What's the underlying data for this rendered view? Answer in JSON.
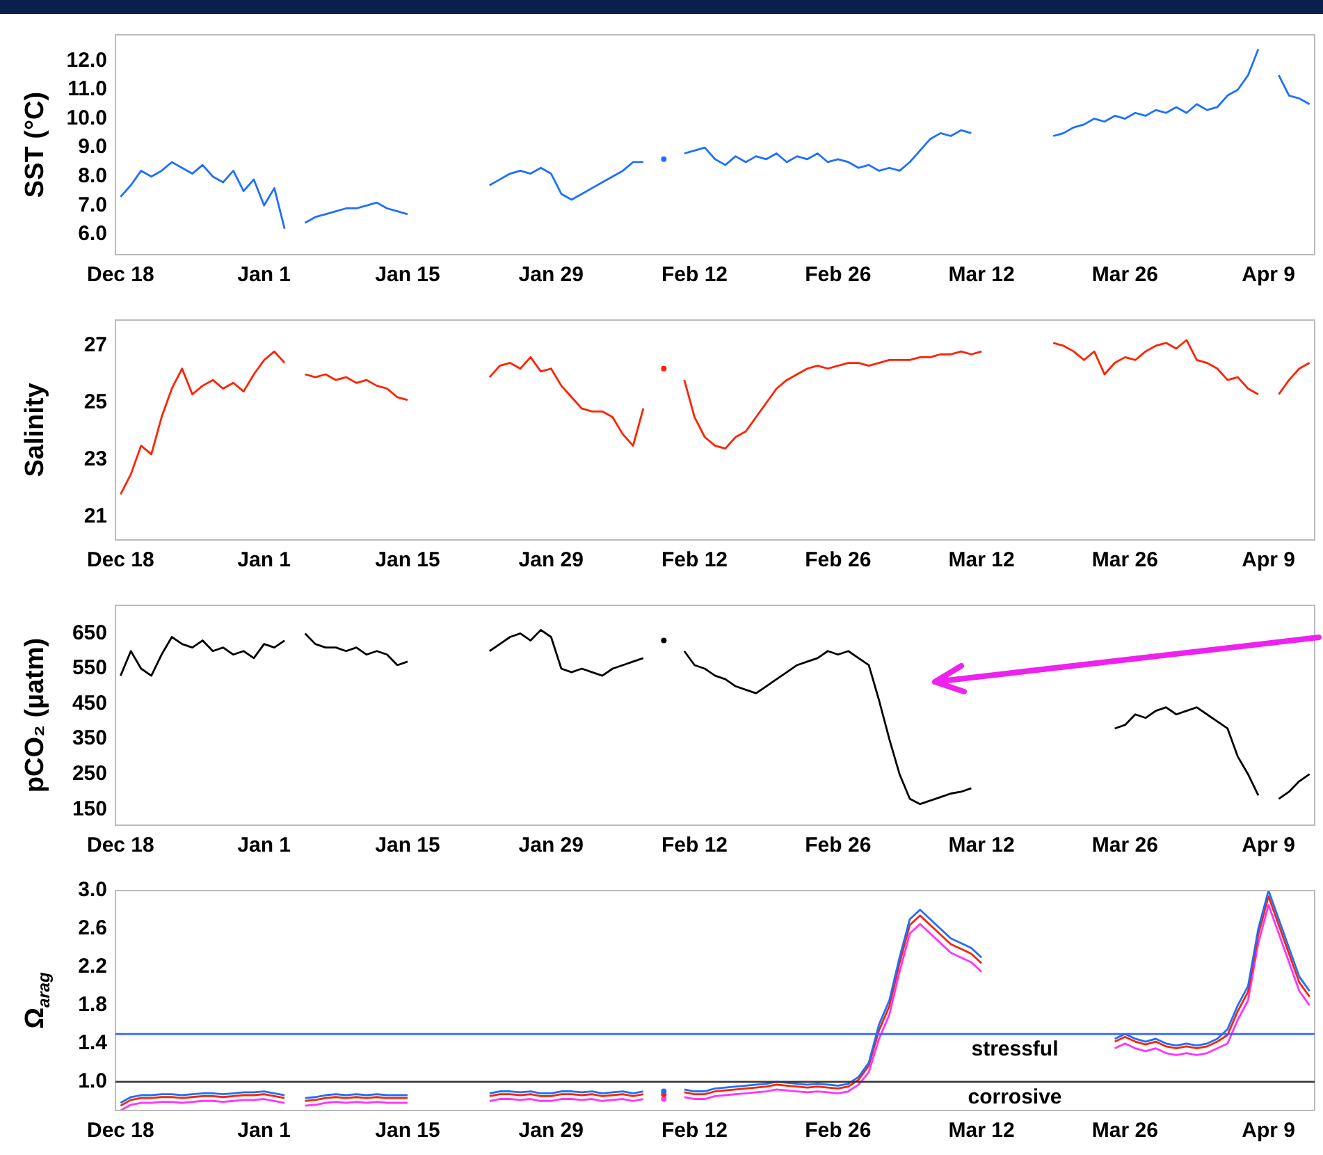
{
  "chart_data": [
    {
      "type": "line",
      "ylabel": "SST (°C)",
      "marker": "none",
      "ylim": [
        5.3,
        12.9
      ],
      "yticks": [
        {
          "value": 6,
          "label": "6.0"
        },
        {
          "value": 7,
          "label": "7.0"
        },
        {
          "value": 8,
          "label": "8.0"
        },
        {
          "value": 9,
          "label": "9.0"
        },
        {
          "value": 10,
          "label": "10.0"
        },
        {
          "value": 11,
          "label": "11.0"
        },
        {
          "value": 12,
          "label": "12.0"
        }
      ],
      "categories": [
        "Dec 18",
        null,
        null,
        null,
        null,
        null,
        null,
        null,
        null,
        null,
        null,
        null,
        null,
        null,
        "Jan 1",
        null,
        null,
        null,
        null,
        null,
        null,
        null,
        null,
        null,
        null,
        null,
        null,
        null,
        "Jan 15",
        null,
        null,
        null,
        null,
        null,
        null,
        null,
        null,
        null,
        null,
        null,
        null,
        null,
        "Jan 29",
        null,
        null,
        null,
        null,
        null,
        null,
        null,
        null,
        null,
        null,
        null,
        null,
        null,
        "Feb 12",
        null,
        null,
        null,
        null,
        null,
        null,
        null,
        null,
        null,
        null,
        null,
        null,
        null,
        "Feb 26",
        null,
        null,
        null,
        null,
        null,
        null,
        null,
        null,
        null,
        null,
        null,
        null,
        null,
        "Mar 12",
        null,
        null,
        null,
        null,
        null,
        null,
        null,
        null,
        null,
        null,
        null,
        null,
        null,
        "Mar 26",
        null,
        null,
        null,
        null,
        null,
        null,
        null,
        null,
        null,
        null,
        null,
        null,
        null,
        "Apr 9",
        null,
        null,
        null,
        null
      ],
      "series": [
        {
          "color": "#1f6fff",
          "values": [
            7.3,
            7.7,
            8.2,
            8.0,
            8.2,
            8.5,
            8.3,
            8.1,
            8.4,
            8.0,
            7.8,
            8.2,
            7.5,
            7.9,
            7.0,
            7.6,
            6.2,
            null,
            6.4,
            6.6,
            6.7,
            6.8,
            6.9,
            6.9,
            7.0,
            7.1,
            6.9,
            6.8,
            6.7,
            null,
            null,
            null,
            null,
            null,
            null,
            null,
            7.7,
            7.9,
            8.1,
            8.2,
            8.1,
            8.3,
            8.1,
            7.4,
            7.2,
            7.4,
            7.6,
            7.8,
            8.0,
            8.2,
            8.5,
            8.5,
            null,
            8.6,
            null,
            8.8,
            8.9,
            9.0,
            8.6,
            8.4,
            8.7,
            8.5,
            8.7,
            8.6,
            8.8,
            8.5,
            8.7,
            8.6,
            8.8,
            8.5,
            8.6,
            8.5,
            8.3,
            8.4,
            8.2,
            8.3,
            8.2,
            8.5,
            8.9,
            9.3,
            9.5,
            9.4,
            9.6,
            9.5,
            null,
            null,
            null,
            null,
            null,
            null,
            null,
            9.4,
            9.5,
            9.7,
            9.8,
            10.0,
            9.9,
            10.1,
            10.0,
            10.2,
            10.1,
            10.3,
            10.2,
            10.4,
            10.2,
            10.5,
            10.3,
            10.4,
            10.8,
            11.0,
            11.5,
            12.4,
            null,
            11.5,
            10.8,
            10.7,
            10.5
          ]
        }
      ]
    },
    {
      "type": "line",
      "ylabel": "Salinity",
      "marker": "none",
      "ylim": [
        20.2,
        27.9
      ],
      "yticks": [
        21,
        23,
        25,
        27
      ],
      "categories": [
        "Dec 18",
        null,
        null,
        null,
        null,
        null,
        null,
        null,
        null,
        null,
        null,
        null,
        null,
        null,
        "Jan 1",
        null,
        null,
        null,
        null,
        null,
        null,
        null,
        null,
        null,
        null,
        null,
        null,
        null,
        "Jan 15",
        null,
        null,
        null,
        null,
        null,
        null,
        null,
        null,
        null,
        null,
        null,
        null,
        null,
        "Jan 29",
        null,
        null,
        null,
        null,
        null,
        null,
        null,
        null,
        null,
        null,
        null,
        null,
        null,
        "Feb 12",
        null,
        null,
        null,
        null,
        null,
        null,
        null,
        null,
        null,
        null,
        null,
        null,
        null,
        "Feb 26",
        null,
        null,
        null,
        null,
        null,
        null,
        null,
        null,
        null,
        null,
        null,
        null,
        null,
        "Mar 12",
        null,
        null,
        null,
        null,
        null,
        null,
        null,
        null,
        null,
        null,
        null,
        null,
        null,
        "Mar 26",
        null,
        null,
        null,
        null,
        null,
        null,
        null,
        null,
        null,
        null,
        null,
        null,
        null,
        "Apr 9",
        null,
        null,
        null,
        null
      ],
      "series": [
        {
          "color": "#ff2200",
          "values": [
            21.8,
            22.5,
            23.5,
            23.2,
            24.5,
            25.5,
            26.2,
            25.3,
            25.6,
            25.8,
            25.5,
            25.7,
            25.4,
            26.0,
            26.5,
            26.8,
            26.4,
            null,
            26.0,
            25.9,
            26.0,
            25.8,
            25.9,
            25.7,
            25.8,
            25.6,
            25.5,
            25.2,
            25.1,
            null,
            null,
            null,
            null,
            null,
            null,
            null,
            25.9,
            26.3,
            26.4,
            26.2,
            26.6,
            26.1,
            26.2,
            25.6,
            25.2,
            24.8,
            24.7,
            24.7,
            24.5,
            23.9,
            23.5,
            24.8,
            null,
            26.2,
            null,
            25.8,
            24.5,
            23.8,
            23.5,
            23.4,
            23.8,
            24.0,
            24.5,
            25.0,
            25.5,
            25.8,
            26.0,
            26.2,
            26.3,
            26.2,
            26.3,
            26.4,
            26.4,
            26.3,
            26.4,
            26.5,
            26.5,
            26.5,
            26.6,
            26.6,
            26.7,
            26.7,
            26.8,
            26.7,
            26.8,
            null,
            null,
            null,
            null,
            null,
            null,
            27.1,
            27.0,
            26.8,
            26.5,
            26.8,
            26.0,
            26.4,
            26.6,
            26.5,
            26.8,
            27.0,
            27.1,
            26.9,
            27.2,
            26.5,
            26.4,
            26.2,
            25.8,
            25.9,
            25.5,
            25.3,
            null,
            25.3,
            25.8,
            26.2,
            26.4
          ]
        }
      ]
    },
    {
      "type": "line",
      "ylabel": "pCO₂ (µatm)",
      "marker": "none",
      "ylim": [
        105,
        730
      ],
      "yticks": [
        150,
        250,
        350,
        450,
        550,
        650
      ],
      "categories": [
        "Dec 18",
        null,
        null,
        null,
        null,
        null,
        null,
        null,
        null,
        null,
        null,
        null,
        null,
        null,
        "Jan 1",
        null,
        null,
        null,
        null,
        null,
        null,
        null,
        null,
        null,
        null,
        null,
        null,
        null,
        "Jan 15",
        null,
        null,
        null,
        null,
        null,
        null,
        null,
        null,
        null,
        null,
        null,
        null,
        null,
        "Jan 29",
        null,
        null,
        null,
        null,
        null,
        null,
        null,
        null,
        null,
        null,
        null,
        null,
        null,
        "Feb 12",
        null,
        null,
        null,
        null,
        null,
        null,
        null,
        null,
        null,
        null,
        null,
        null,
        null,
        "Feb 26",
        null,
        null,
        null,
        null,
        null,
        null,
        null,
        null,
        null,
        null,
        null,
        null,
        null,
        "Mar 12",
        null,
        null,
        null,
        null,
        null,
        null,
        null,
        null,
        null,
        null,
        null,
        null,
        null,
        "Mar 26",
        null,
        null,
        null,
        null,
        null,
        null,
        null,
        null,
        null,
        null,
        null,
        null,
        null,
        "Apr 9",
        null,
        null,
        null,
        null
      ],
      "series": [
        {
          "color": "#000000",
          "values": [
            530,
            600,
            550,
            530,
            590,
            640,
            620,
            610,
            630,
            600,
            610,
            590,
            600,
            580,
            620,
            610,
            630,
            null,
            650,
            620,
            610,
            610,
            600,
            610,
            590,
            600,
            590,
            560,
            570,
            null,
            null,
            null,
            null,
            null,
            null,
            null,
            600,
            620,
            640,
            650,
            630,
            660,
            640,
            550,
            540,
            550,
            540,
            530,
            550,
            560,
            570,
            580,
            null,
            630,
            null,
            600,
            560,
            550,
            530,
            520,
            500,
            490,
            480,
            500,
            520,
            540,
            560,
            570,
            580,
            600,
            590,
            600,
            580,
            560,
            460,
            350,
            250,
            180,
            165,
            175,
            185,
            195,
            200,
            210,
            null,
            null,
            null,
            null,
            null,
            null,
            null,
            null,
            null,
            null,
            null,
            null,
            null,
            380,
            390,
            420,
            410,
            430,
            440,
            420,
            430,
            440,
            420,
            400,
            380,
            300,
            250,
            190,
            null,
            180,
            200,
            230,
            250
          ]
        }
      ]
    },
    {
      "type": "line",
      "ylabel": "Ω$_{arag}$",
      "marker": "none",
      "ylim": [
        0.7,
        3.0
      ],
      "yticks": [
        {
          "value": 1,
          "label": "1.0"
        },
        1.4,
        1.8,
        2.2,
        2.6,
        {
          "value": 3,
          "label": "3.0"
        }
      ],
      "ref_lines": [
        {
          "axis": "y",
          "value": 1.5,
          "label": "stressful",
          "color": "#3366ff"
        },
        {
          "axis": "y",
          "value": 1.0,
          "label": "corrosive",
          "color": "#333333"
        }
      ],
      "categories": [
        "Dec 18",
        null,
        null,
        null,
        null,
        null,
        null,
        null,
        null,
        null,
        null,
        null,
        null,
        null,
        "Jan 1",
        null,
        null,
        null,
        null,
        null,
        null,
        null,
        null,
        null,
        null,
        null,
        null,
        null,
        "Jan 15",
        null,
        null,
        null,
        null,
        null,
        null,
        null,
        null,
        null,
        null,
        null,
        null,
        null,
        "Jan 29",
        null,
        null,
        null,
        null,
        null,
        null,
        null,
        null,
        null,
        null,
        null,
        null,
        null,
        "Feb 12",
        null,
        null,
        null,
        null,
        null,
        null,
        null,
        null,
        null,
        null,
        null,
        null,
        null,
        "Feb 26",
        null,
        null,
        null,
        null,
        null,
        null,
        null,
        null,
        null,
        null,
        null,
        null,
        null,
        "Mar 12",
        null,
        null,
        null,
        null,
        null,
        null,
        null,
        null,
        null,
        null,
        null,
        null,
        null,
        "Mar 26",
        null,
        null,
        null,
        null,
        null,
        null,
        null,
        null,
        null,
        null,
        null,
        null,
        null,
        "Apr 9",
        null,
        null,
        null,
        null
      ],
      "series": [
        {
          "color": "#1f6fff",
          "values": [
            0.78,
            0.84,
            0.86,
            0.86,
            0.87,
            0.87,
            0.86,
            0.87,
            0.88,
            0.88,
            0.87,
            0.88,
            0.89,
            0.89,
            0.9,
            0.88,
            0.86,
            null,
            0.83,
            0.84,
            0.86,
            0.87,
            0.86,
            0.87,
            0.86,
            0.87,
            0.86,
            0.86,
            0.86,
            null,
            null,
            null,
            null,
            null,
            null,
            null,
            0.88,
            0.9,
            0.9,
            0.89,
            0.9,
            0.88,
            0.88,
            0.9,
            0.9,
            0.89,
            0.9,
            0.88,
            0.89,
            0.9,
            0.88,
            0.9,
            null,
            0.9,
            null,
            0.92,
            0.9,
            0.9,
            0.93,
            0.94,
            0.95,
            0.96,
            0.97,
            0.98,
            1.0,
            0.99,
            0.98,
            0.97,
            0.98,
            0.97,
            0.96,
            0.98,
            1.05,
            1.2,
            1.6,
            1.85,
            2.3,
            2.7,
            2.8,
            2.7,
            2.6,
            2.5,
            2.45,
            2.4,
            2.3,
            null,
            null,
            null,
            null,
            null,
            null,
            null,
            null,
            null,
            null,
            null,
            null,
            1.45,
            1.5,
            1.45,
            1.42,
            1.45,
            1.4,
            1.38,
            1.4,
            1.38,
            1.4,
            1.45,
            1.55,
            1.8,
            2.0,
            2.6,
            3.0,
            2.7,
            2.4,
            2.1,
            1.95
          ]
        },
        {
          "color": "#ff2200",
          "values": [
            0.75,
            0.81,
            0.83,
            0.83,
            0.84,
            0.84,
            0.83,
            0.84,
            0.85,
            0.85,
            0.84,
            0.85,
            0.86,
            0.86,
            0.87,
            0.85,
            0.83,
            null,
            0.8,
            0.81,
            0.83,
            0.84,
            0.83,
            0.84,
            0.83,
            0.84,
            0.83,
            0.83,
            0.83,
            null,
            null,
            null,
            null,
            null,
            null,
            null,
            0.85,
            0.87,
            0.87,
            0.86,
            0.87,
            0.85,
            0.85,
            0.87,
            0.87,
            0.86,
            0.87,
            0.85,
            0.86,
            0.87,
            0.85,
            0.87,
            null,
            0.87,
            null,
            0.89,
            0.87,
            0.87,
            0.9,
            0.91,
            0.92,
            0.93,
            0.94,
            0.95,
            0.97,
            0.96,
            0.95,
            0.94,
            0.95,
            0.94,
            0.93,
            0.95,
            1.02,
            1.17,
            1.54,
            1.79,
            2.24,
            2.64,
            2.74,
            2.64,
            2.54,
            2.44,
            2.39,
            2.34,
            2.24,
            null,
            null,
            null,
            null,
            null,
            null,
            null,
            null,
            null,
            null,
            null,
            null,
            1.42,
            1.47,
            1.42,
            1.39,
            1.42,
            1.37,
            1.35,
            1.37,
            1.35,
            1.37,
            1.42,
            1.49,
            1.74,
            1.94,
            2.54,
            2.94,
            2.64,
            2.34,
            2.04,
            1.89
          ]
        },
        {
          "color": "#ff33ff",
          "values": [
            0.7,
            0.76,
            0.78,
            0.78,
            0.79,
            0.79,
            0.78,
            0.79,
            0.8,
            0.8,
            0.79,
            0.8,
            0.81,
            0.81,
            0.82,
            0.8,
            0.78,
            null,
            0.75,
            0.76,
            0.78,
            0.79,
            0.78,
            0.79,
            0.78,
            0.79,
            0.78,
            0.78,
            0.78,
            null,
            null,
            null,
            null,
            null,
            null,
            null,
            0.8,
            0.82,
            0.82,
            0.81,
            0.82,
            0.8,
            0.8,
            0.82,
            0.82,
            0.81,
            0.82,
            0.8,
            0.81,
            0.82,
            0.8,
            0.82,
            null,
            0.82,
            null,
            0.84,
            0.82,
            0.82,
            0.85,
            0.86,
            0.87,
            0.88,
            0.89,
            0.9,
            0.92,
            0.91,
            0.9,
            0.89,
            0.9,
            0.89,
            0.88,
            0.9,
            0.97,
            1.1,
            1.45,
            1.7,
            2.15,
            2.55,
            2.65,
            2.55,
            2.45,
            2.35,
            2.3,
            2.25,
            2.15,
            null,
            null,
            null,
            null,
            null,
            null,
            null,
            null,
            null,
            null,
            null,
            null,
            1.35,
            1.4,
            1.35,
            1.32,
            1.35,
            1.3,
            1.28,
            1.3,
            1.28,
            1.3,
            1.35,
            1.4,
            1.65,
            1.85,
            2.45,
            2.85,
            2.55,
            2.25,
            1.95,
            1.8
          ]
        }
      ]
    }
  ]
}
